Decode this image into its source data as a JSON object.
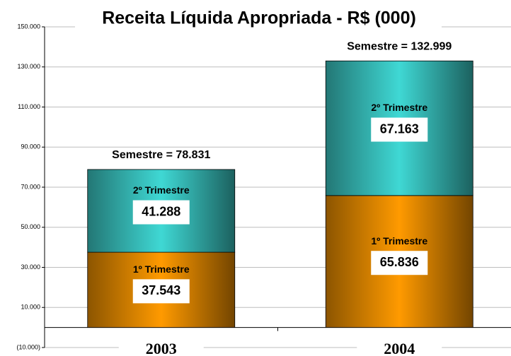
{
  "chart_data": {
    "type": "stacked_bar",
    "title": "Receita Líquida Apropriada - R$ (000)",
    "categories": [
      "2003",
      "2004"
    ],
    "series": [
      {
        "name": "1º Trimestre",
        "color": "#ff9a00",
        "values": [
          37543,
          65836
        ],
        "value_labels": [
          "37.543",
          "65.836"
        ]
      },
      {
        "name": "2º Trimestre",
        "color": "#3fd8d4",
        "values": [
          41288,
          67163
        ],
        "value_labels": [
          "41.288",
          "67.163"
        ]
      }
    ],
    "total_labels": [
      "Semestre = 78.831",
      "Semestre = 132.999"
    ],
    "ylim": [
      -10000,
      150000
    ],
    "yticks": [
      {
        "value": -10000,
        "label": "(10.000)"
      },
      {
        "value": 10000,
        "label": "10.000"
      },
      {
        "value": 30000,
        "label": "30.000"
      },
      {
        "value": 50000,
        "label": "50.000"
      },
      {
        "value": 70000,
        "label": "70.000"
      },
      {
        "value": 90000,
        "label": "90.000"
      },
      {
        "value": 110000,
        "label": "110.000"
      },
      {
        "value": 130000,
        "label": "130.000"
      },
      {
        "value": 150000,
        "label": "150.000"
      }
    ],
    "grid": true
  }
}
